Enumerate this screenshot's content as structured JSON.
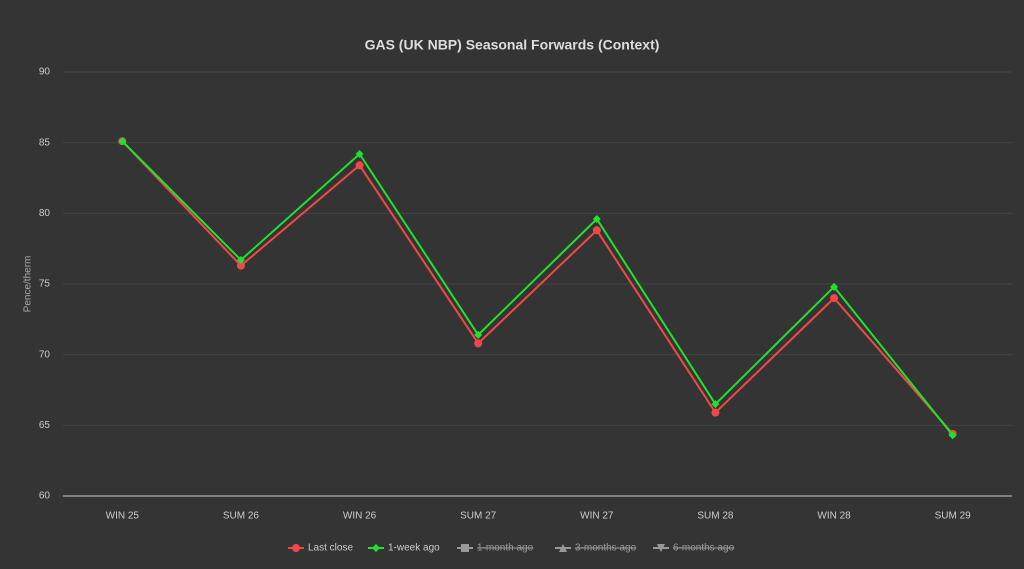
{
  "chart_data": {
    "type": "line",
    "title": "GAS (UK NBP) Seasonal Forwards (Context)",
    "y_label": "Pence/therm",
    "categories": [
      "WIN 25",
      "SUM 26",
      "WIN 26",
      "SUM 27",
      "WIN 27",
      "SUM 28",
      "WIN 28",
      "SUM 29"
    ],
    "series": [
      {
        "name": "Last close",
        "color": "#f04848",
        "marker": "circle",
        "values": [
          85.1,
          76.3,
          83.4,
          70.8,
          78.8,
          65.9,
          74.0,
          64.4
        ]
      },
      {
        "name": "1-week ago",
        "color": "#22e030",
        "marker": "diamond",
        "values": [
          85.1,
          76.7,
          84.2,
          71.4,
          79.6,
          66.5,
          74.8,
          64.3
        ]
      },
      {
        "name": "1-month ago",
        "color": "#999999",
        "marker": "square",
        "hidden": true
      },
      {
        "name": "3-months ago",
        "color": "#999999",
        "marker": "triangle",
        "hidden": true
      },
      {
        "name": "6-months ago",
        "color": "#999999",
        "marker": "triangle-down",
        "hidden": true
      }
    ],
    "ylim": [
      60,
      90
    ],
    "yticks": [
      60,
      65,
      70,
      75,
      80,
      85,
      90
    ],
    "grid": true,
    "legend": "bottom"
  }
}
